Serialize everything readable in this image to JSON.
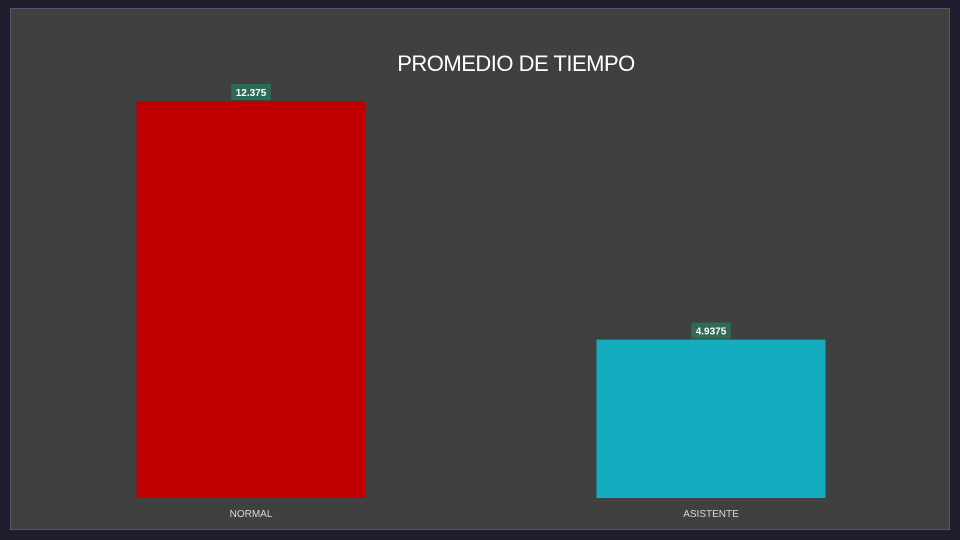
{
  "chart_data": {
    "type": "bar",
    "title": "PROMEDIO DE TIEMPO",
    "categories": [
      "NORMAL",
      "ASISTENTE"
    ],
    "values": [
      12.375,
      4.9375
    ],
    "data_labels": [
      "12.375",
      "4.9375"
    ],
    "colors": [
      "#c00000",
      "#14adc0"
    ],
    "label_box_color": "#2e6b55",
    "ylim": [
      0,
      12.375
    ],
    "grid": false,
    "legend": "none"
  }
}
